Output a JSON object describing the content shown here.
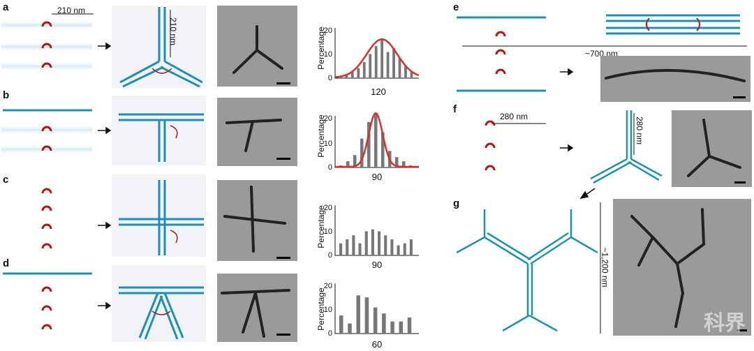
{
  "colors": {
    "strand": "#1f8fb5",
    "hinge": "#b01818",
    "fit": "#d8302e",
    "bar": "#777777",
    "tem_bg": "#a3a3a3"
  },
  "panels": {
    "a": {
      "label": "a",
      "dim_h": "210 nm",
      "dim_v": "210 nm",
      "ylabel": "Percentage",
      "xtick": "120",
      "yticks": [
        "20",
        "10",
        "0"
      ],
      "bars": [
        1,
        2,
        3,
        5,
        8,
        12,
        16,
        19,
        13,
        15,
        10,
        6,
        3
      ]
    },
    "b": {
      "label": "b",
      "ylabel": "Percentage",
      "xtick": "90",
      "yticks": [
        "20",
        "10",
        "0"
      ],
      "bars": [
        1,
        3,
        6,
        14,
        22,
        26,
        17,
        8,
        5,
        3,
        1
      ]
    },
    "c": {
      "label": "c",
      "ylabel": "Percentage",
      "xtick": "90",
      "yticks": [
        "20",
        "10",
        "0"
      ],
      "bars": [
        6,
        8,
        10,
        6,
        12,
        13,
        12,
        10,
        8,
        5,
        6,
        8
      ]
    },
    "d": {
      "label": "d",
      "ylabel": "Percentage",
      "xtick": "60",
      "yticks": [
        "20",
        "10",
        "0"
      ],
      "bars": [
        9,
        5,
        19,
        18,
        13,
        10,
        6,
        6,
        8
      ]
    },
    "e": {
      "label": "e",
      "dim": "~700 nm"
    },
    "f": {
      "label": "f",
      "dim_h": "280 nm",
      "dim_v": "280 nm"
    },
    "g": {
      "label": "g",
      "dim": "~1,200 nm"
    }
  },
  "arrow": "→"
}
